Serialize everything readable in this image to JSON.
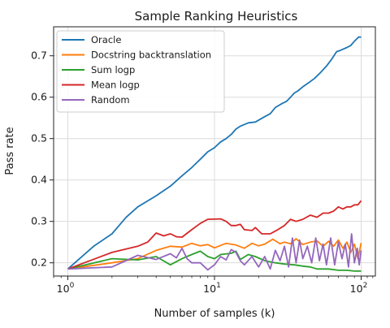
{
  "chart_data": {
    "type": "line",
    "title": "Sample Ranking Heuristics",
    "xlabel": "Number of samples (k)",
    "ylabel": "Pass rate",
    "xscale": "log",
    "xlim": [
      0.8,
      125
    ],
    "ylim": [
      0.168,
      0.77
    ],
    "grid": true,
    "legend_position": "top-left",
    "x_ticks": [
      {
        "value": 1,
        "base": "10",
        "exp": "0"
      },
      {
        "value": 10,
        "base": "10",
        "exp": "1"
      },
      {
        "value": 100,
        "base": "10",
        "exp": "2"
      }
    ],
    "y_ticks": [
      0.2,
      0.3,
      0.4,
      0.5,
      0.6,
      0.7
    ],
    "y_tick_labels": [
      "0.2",
      "0.3",
      "0.4",
      "0.5",
      "0.6",
      "0.7"
    ],
    "series": [
      {
        "name": "Oracle",
        "color": "#1f77b4",
        "points": [
          [
            1,
            0.185
          ],
          [
            1.5,
            0.24
          ],
          [
            2,
            0.27
          ],
          [
            2.5,
            0.31
          ],
          [
            3,
            0.335
          ],
          [
            4,
            0.362
          ],
          [
            5,
            0.385
          ],
          [
            6,
            0.41
          ],
          [
            7,
            0.43
          ],
          [
            8,
            0.45
          ],
          [
            9,
            0.468
          ],
          [
            10,
            0.478
          ],
          [
            11,
            0.492
          ],
          [
            12,
            0.5
          ],
          [
            13,
            0.51
          ],
          [
            14,
            0.523
          ],
          [
            15,
            0.53
          ],
          [
            17,
            0.538
          ],
          [
            19,
            0.54
          ],
          [
            22,
            0.553
          ],
          [
            24,
            0.56
          ],
          [
            26,
            0.575
          ],
          [
            29,
            0.585
          ],
          [
            31,
            0.59
          ],
          [
            33,
            0.6
          ],
          [
            35,
            0.61
          ],
          [
            37,
            0.615
          ],
          [
            40,
            0.625
          ],
          [
            44,
            0.635
          ],
          [
            48,
            0.645
          ],
          [
            53,
            0.66
          ],
          [
            58,
            0.675
          ],
          [
            63,
            0.692
          ],
          [
            68,
            0.71
          ],
          [
            72,
            0.713
          ],
          [
            80,
            0.72
          ],
          [
            85,
            0.725
          ],
          [
            90,
            0.735
          ],
          [
            96,
            0.745
          ],
          [
            100,
            0.745
          ]
        ]
      },
      {
        "name": "Docstring backtranslation",
        "color": "#ff7f0e",
        "points": [
          [
            1,
            0.185
          ],
          [
            2,
            0.2
          ],
          [
            3,
            0.21
          ],
          [
            4,
            0.23
          ],
          [
            5,
            0.24
          ],
          [
            6,
            0.238
          ],
          [
            7,
            0.247
          ],
          [
            8,
            0.241
          ],
          [
            9,
            0.244
          ],
          [
            10,
            0.236
          ],
          [
            12,
            0.247
          ],
          [
            14,
            0.243
          ],
          [
            16,
            0.235
          ],
          [
            18,
            0.247
          ],
          [
            20,
            0.241
          ],
          [
            22,
            0.245
          ],
          [
            25,
            0.257
          ],
          [
            28,
            0.246
          ],
          [
            30,
            0.25
          ],
          [
            33,
            0.246
          ],
          [
            36,
            0.258
          ],
          [
            40,
            0.244
          ],
          [
            45,
            0.25
          ],
          [
            50,
            0.253
          ],
          [
            55,
            0.24
          ],
          [
            60,
            0.252
          ],
          [
            65,
            0.24
          ],
          [
            70,
            0.255
          ],
          [
            75,
            0.235
          ],
          [
            80,
            0.25
          ],
          [
            85,
            0.225
          ],
          [
            90,
            0.245
          ],
          [
            95,
            0.21
          ],
          [
            100,
            0.248
          ]
        ]
      },
      {
        "name": "Sum logp",
        "color": "#2ca02c",
        "points": [
          [
            1,
            0.185
          ],
          [
            2,
            0.21
          ],
          [
            3,
            0.207
          ],
          [
            4,
            0.215
          ],
          [
            5,
            0.195
          ],
          [
            6,
            0.21
          ],
          [
            7,
            0.22
          ],
          [
            8,
            0.228
          ],
          [
            9,
            0.215
          ],
          [
            10,
            0.21
          ],
          [
            11,
            0.22
          ],
          [
            13,
            0.223
          ],
          [
            14,
            0.228
          ],
          [
            15,
            0.208
          ],
          [
            17,
            0.22
          ],
          [
            19,
            0.215
          ],
          [
            22,
            0.205
          ],
          [
            26,
            0.2
          ],
          [
            30,
            0.197
          ],
          [
            35,
            0.195
          ],
          [
            40,
            0.192
          ],
          [
            45,
            0.19
          ],
          [
            50,
            0.185
          ],
          [
            60,
            0.185
          ],
          [
            70,
            0.182
          ],
          [
            80,
            0.182
          ],
          [
            90,
            0.18
          ],
          [
            100,
            0.18
          ]
        ]
      },
      {
        "name": "Mean logp",
        "color": "#d62728",
        "points": [
          [
            1,
            0.185
          ],
          [
            2,
            0.225
          ],
          [
            3,
            0.24
          ],
          [
            3.5,
            0.25
          ],
          [
            4,
            0.272
          ],
          [
            4.5,
            0.265
          ],
          [
            5,
            0.27
          ],
          [
            5.5,
            0.263
          ],
          [
            6,
            0.262
          ],
          [
            7,
            0.28
          ],
          [
            8,
            0.295
          ],
          [
            9,
            0.305
          ],
          [
            11,
            0.306
          ],
          [
            12,
            0.3
          ],
          [
            13,
            0.29
          ],
          [
            14,
            0.29
          ],
          [
            15,
            0.293
          ],
          [
            16,
            0.28
          ],
          [
            18,
            0.278
          ],
          [
            19,
            0.285
          ],
          [
            21,
            0.27
          ],
          [
            24,
            0.27
          ],
          [
            27,
            0.28
          ],
          [
            30,
            0.29
          ],
          [
            33,
            0.305
          ],
          [
            36,
            0.3
          ],
          [
            40,
            0.305
          ],
          [
            45,
            0.315
          ],
          [
            50,
            0.31
          ],
          [
            55,
            0.32
          ],
          [
            60,
            0.32
          ],
          [
            65,
            0.325
          ],
          [
            70,
            0.335
          ],
          [
            75,
            0.33
          ],
          [
            80,
            0.335
          ],
          [
            85,
            0.335
          ],
          [
            90,
            0.34
          ],
          [
            95,
            0.34
          ],
          [
            100,
            0.35
          ]
        ]
      },
      {
        "name": "Random",
        "color": "#9467bd",
        "points": [
          [
            1,
            0.185
          ],
          [
            2,
            0.19
          ],
          [
            3,
            0.218
          ],
          [
            4,
            0.208
          ],
          [
            5,
            0.222
          ],
          [
            5.5,
            0.212
          ],
          [
            6,
            0.235
          ],
          [
            6.5,
            0.21
          ],
          [
            7,
            0.2
          ],
          [
            8,
            0.2
          ],
          [
            9,
            0.183
          ],
          [
            10,
            0.195
          ],
          [
            11,
            0.215
          ],
          [
            12,
            0.207
          ],
          [
            13,
            0.232
          ],
          [
            14,
            0.225
          ],
          [
            15,
            0.205
          ],
          [
            16,
            0.195
          ],
          [
            18,
            0.215
          ],
          [
            20,
            0.19
          ],
          [
            22,
            0.215
          ],
          [
            24,
            0.185
          ],
          [
            26,
            0.23
          ],
          [
            28,
            0.205
          ],
          [
            30,
            0.24
          ],
          [
            32,
            0.19
          ],
          [
            34,
            0.26
          ],
          [
            36,
            0.2
          ],
          [
            38,
            0.255
          ],
          [
            40,
            0.21
          ],
          [
            43,
            0.24
          ],
          [
            46,
            0.2
          ],
          [
            49,
            0.26
          ],
          [
            52,
            0.205
          ],
          [
            55,
            0.245
          ],
          [
            58,
            0.195
          ],
          [
            62,
            0.26
          ],
          [
            66,
            0.195
          ],
          [
            70,
            0.25
          ],
          [
            74,
            0.21
          ],
          [
            78,
            0.245
          ],
          [
            82,
            0.19
          ],
          [
            86,
            0.27
          ],
          [
            90,
            0.2
          ],
          [
            94,
            0.235
          ],
          [
            97,
            0.195
          ],
          [
            100,
            0.23
          ]
        ]
      }
    ]
  }
}
